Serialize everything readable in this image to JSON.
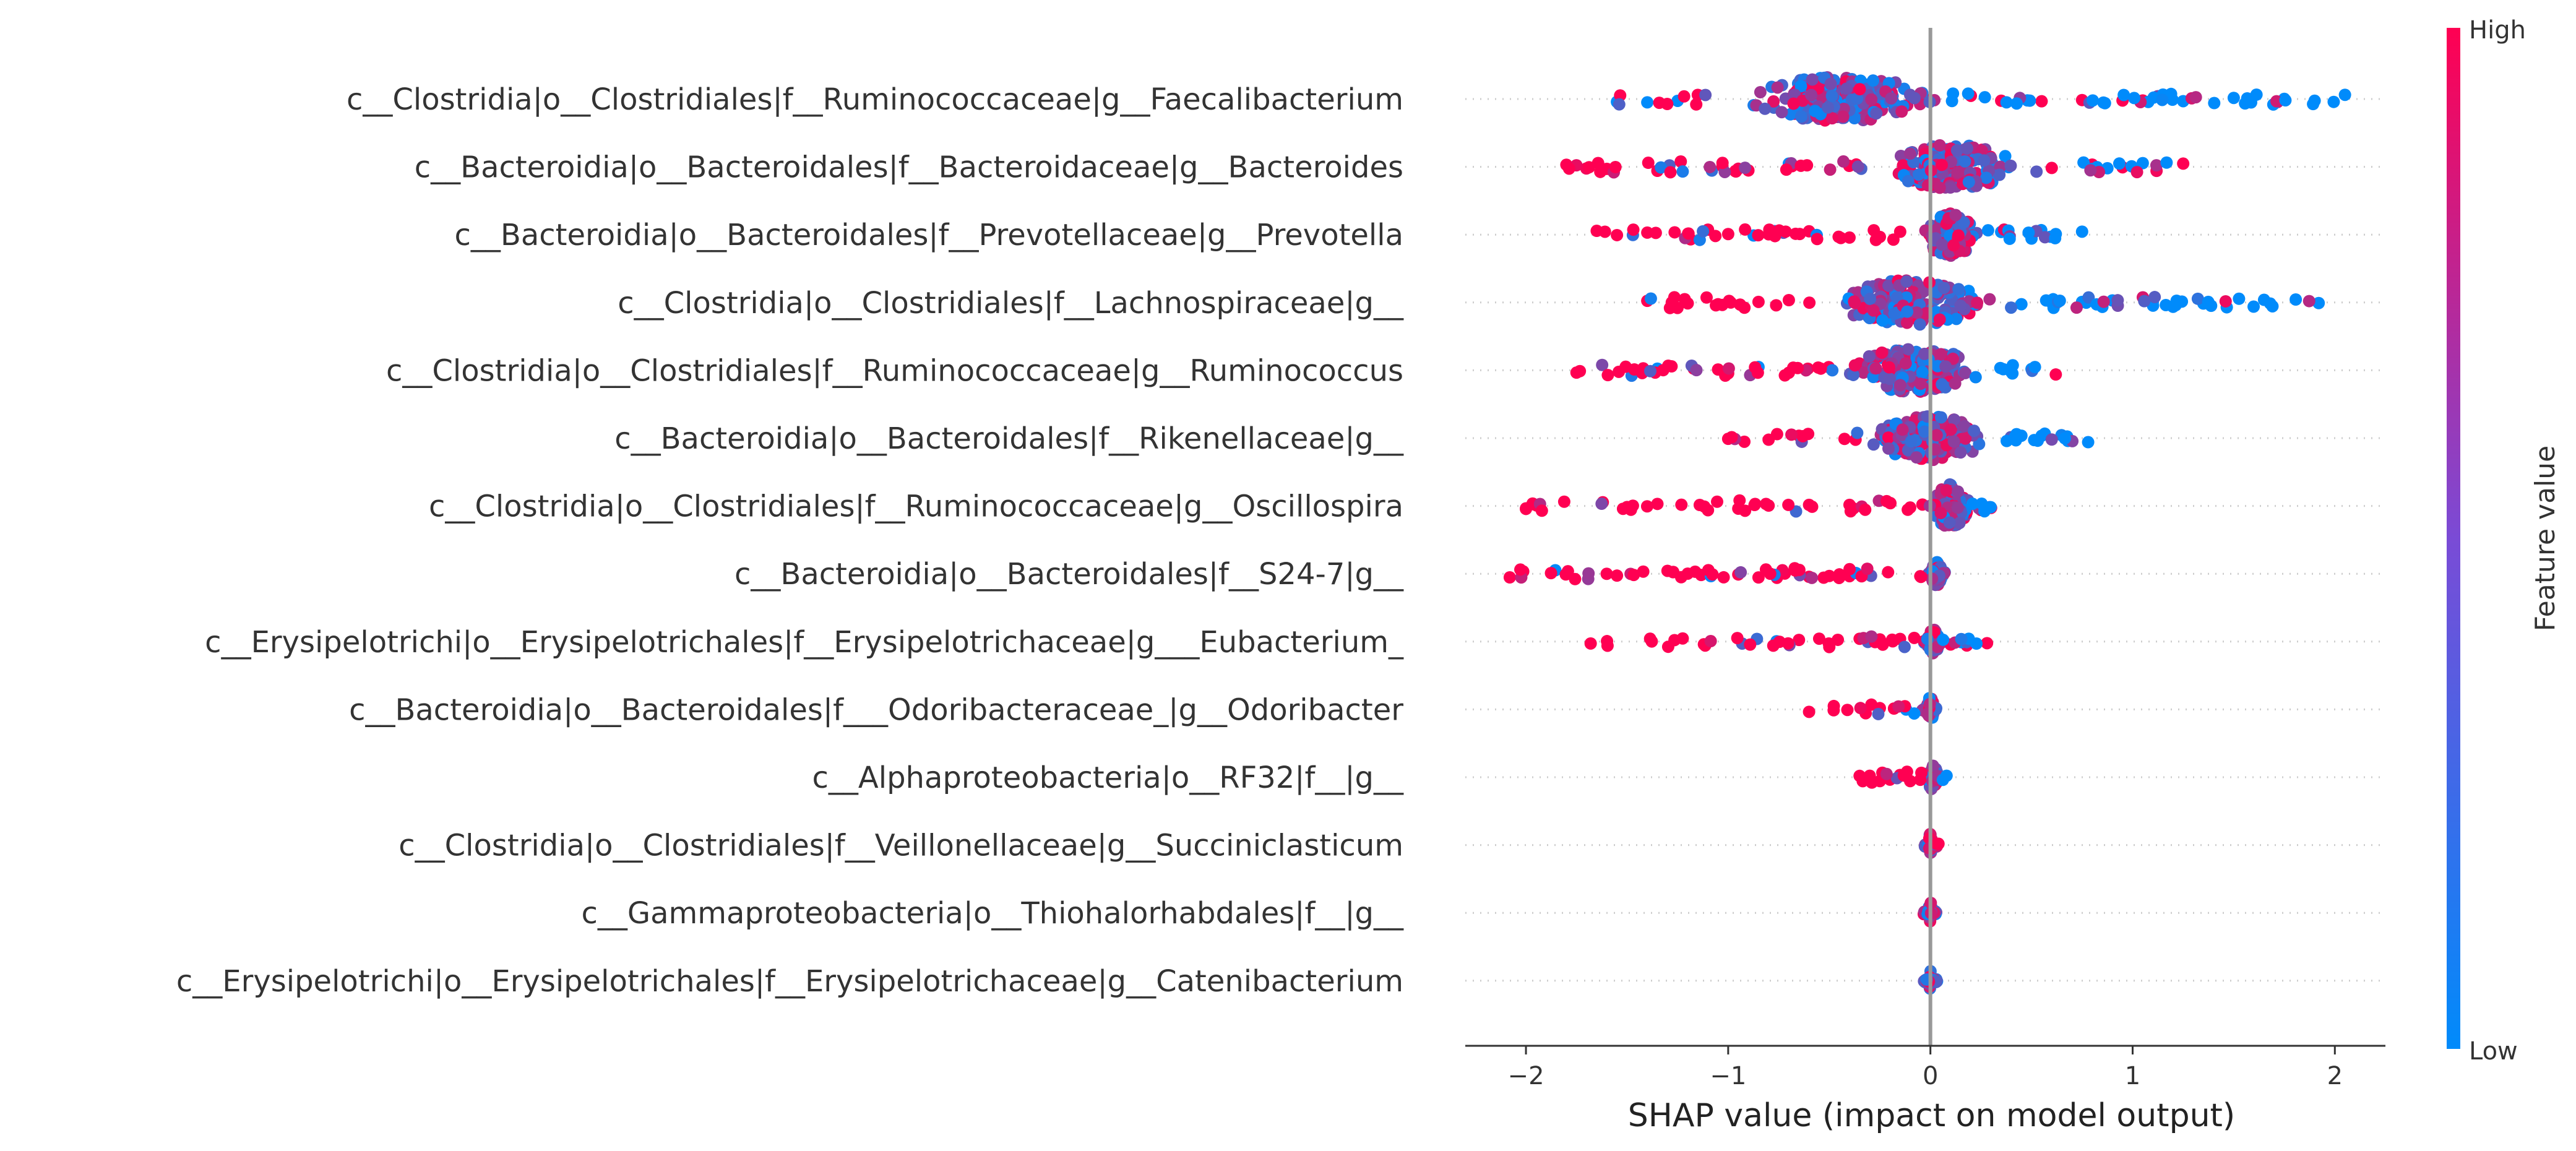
{
  "chart_data": {
    "type": "scatter",
    "subtype": "shap-beeswarm",
    "title": "",
    "xlabel": "SHAP value (impact on model output)",
    "xlim": [
      -2.3,
      2.25
    ],
    "xticks": [
      -2,
      -1,
      0,
      1,
      2
    ],
    "xtick_labels": [
      "−2",
      "−1",
      "0",
      "1",
      "2"
    ],
    "grid": false,
    "colorbar": {
      "title": "Feature value",
      "high_label": "High",
      "low_label": "Low",
      "low_color": "#008bfb",
      "high_color": "#ff0052"
    },
    "features": [
      {
        "name": "c__Clostridia|o__Clostridiales|f__Ruminococcaceae|g__Faecalibacterium",
        "min": -1.55,
        "max": 2.05,
        "core": [
          -1.0,
          0.1
        ],
        "spread": 0.1,
        "n": 230,
        "points": [
          [
            -1.55,
            "low"
          ],
          [
            -1.4,
            "low"
          ],
          [
            -1.25,
            "low"
          ],
          [
            1.25,
            "low"
          ],
          [
            1.5,
            "low"
          ],
          [
            1.75,
            "low"
          ],
          [
            1.9,
            "low"
          ],
          [
            2.05,
            "low"
          ],
          [
            0.2,
            "high"
          ],
          [
            0.35,
            "high"
          ],
          [
            0.55,
            "high"
          ],
          [
            0.75,
            "high"
          ],
          [
            0.95,
            "high"
          ],
          [
            1.05,
            "high"
          ]
        ]
      },
      {
        "name": "c__Bacteroidia|o__Bacteroidales|f__Bacteroidaceae|g__Bacteroides",
        "min": -1.8,
        "max": 1.25,
        "core": [
          -0.3,
          0.5
        ],
        "spread": 0.1,
        "n": 170,
        "points": [
          [
            -1.8,
            "high"
          ],
          [
            -1.6,
            "high"
          ],
          [
            -1.35,
            "high"
          ],
          [
            -0.9,
            "high"
          ],
          [
            -0.7,
            "low"
          ],
          [
            0.6,
            "high"
          ],
          [
            0.8,
            "high"
          ],
          [
            0.95,
            "high"
          ],
          [
            1.05,
            "low"
          ],
          [
            1.25,
            "high"
          ]
        ]
      },
      {
        "name": "c__Bacteroidia|o__Bacteroidales|f__Prevotellaceae|g__Prevotella",
        "min": -1.65,
        "max": 0.75,
        "core": [
          -0.05,
          0.25
        ],
        "spread": 0.1,
        "n": 150,
        "points": [
          [
            -1.65,
            "high"
          ],
          [
            -1.55,
            "high"
          ],
          [
            -1.4,
            "high"
          ],
          [
            -1.2,
            "high"
          ],
          [
            -1.0,
            "high"
          ],
          [
            -0.8,
            "high"
          ],
          [
            -0.6,
            "high"
          ],
          [
            -0.4,
            "high"
          ],
          [
            -0.25,
            "high"
          ],
          [
            0.35,
            "low"
          ],
          [
            0.5,
            "low"
          ],
          [
            0.62,
            "low"
          ],
          [
            0.75,
            "low"
          ]
        ]
      },
      {
        "name": "c__Clostridia|o__Clostridiales|f__Lachnospiraceae|g__",
        "min": -1.4,
        "max": 1.92,
        "core": [
          -0.55,
          0.35
        ],
        "spread": 0.1,
        "n": 190,
        "points": [
          [
            -1.4,
            "high"
          ],
          [
            -1.2,
            "high"
          ],
          [
            -1.05,
            "high"
          ],
          [
            -0.85,
            "high"
          ],
          [
            -0.7,
            "high"
          ],
          [
            0.45,
            "low"
          ],
          [
            0.6,
            "low"
          ],
          [
            0.75,
            "low"
          ],
          [
            0.9,
            "low"
          ],
          [
            1.1,
            "low"
          ],
          [
            1.2,
            "low"
          ],
          [
            1.35,
            "low"
          ],
          [
            1.65,
            "low"
          ],
          [
            1.92,
            "low"
          ]
        ]
      },
      {
        "name": "c__Clostridia|o__Clostridiales|f__Ruminococcaceae|g__Ruminococcus",
        "min": -1.75,
        "max": 0.62,
        "core": [
          -0.45,
          0.3
        ],
        "spread": 0.1,
        "n": 170,
        "points": [
          [
            -1.75,
            "high"
          ],
          [
            -1.42,
            "high"
          ],
          [
            -1.35,
            "low"
          ],
          [
            -1.28,
            "high"
          ],
          [
            -1.05,
            "high"
          ],
          [
            -0.85,
            "low"
          ],
          [
            -0.7,
            "high"
          ],
          [
            0.4,
            "low"
          ],
          [
            0.5,
            "low"
          ],
          [
            0.62,
            "high"
          ]
        ]
      },
      {
        "name": "c__Bacteroidia|o__Bacteroidales|f__Rikenellaceae|g__",
        "min": -1.0,
        "max": 0.78,
        "core": [
          -0.35,
          0.35
        ],
        "spread": 0.1,
        "n": 160,
        "points": [
          [
            -1.0,
            "high"
          ],
          [
            -0.92,
            "high"
          ],
          [
            -0.8,
            "high"
          ],
          [
            -0.65,
            "high"
          ],
          [
            0.45,
            "low"
          ],
          [
            0.55,
            "low"
          ],
          [
            0.68,
            "low"
          ],
          [
            0.78,
            "low"
          ]
        ]
      },
      {
        "name": "c__Clostridia|o__Clostridiales|f__Ruminococcaceae|g__Oscillospira",
        "min": -2.0,
        "max": 0.3,
        "core": [
          0.0,
          0.2
        ],
        "spread": 0.1,
        "n": 140,
        "points": [
          [
            -2.0,
            "high"
          ],
          [
            -1.62,
            "high"
          ],
          [
            -1.52,
            "high"
          ],
          [
            -1.35,
            "high"
          ],
          [
            -1.1,
            "high"
          ],
          [
            -0.95,
            "high"
          ],
          [
            -0.8,
            "high"
          ],
          [
            -0.6,
            "high"
          ],
          [
            -0.4,
            "high"
          ],
          [
            -0.2,
            "high"
          ],
          [
            -0.1,
            "high"
          ],
          [
            0.25,
            "high"
          ],
          [
            0.3,
            "high"
          ]
        ]
      },
      {
        "name": "c__Bacteroidia|o__Bacteroidales|f__S24-7|g__",
        "min": -2.08,
        "max": 0.05,
        "core": [
          0.0,
          0.06
        ],
        "spread": 0.1,
        "n": 110,
        "points": [
          [
            -2.08,
            "high"
          ],
          [
            -1.55,
            "high"
          ],
          [
            -1.42,
            "high"
          ],
          [
            -1.3,
            "high"
          ],
          [
            -1.2,
            "high"
          ],
          [
            -1.1,
            "high"
          ],
          [
            -0.95,
            "high"
          ],
          [
            -0.85,
            "high"
          ],
          [
            -0.72,
            "high"
          ],
          [
            -0.6,
            "high"
          ],
          [
            -0.5,
            "high"
          ],
          [
            -0.45,
            "high"
          ],
          [
            -0.05,
            "high"
          ]
        ]
      },
      {
        "name": "c__Erysipelotrichi|o__Erysipelotrichales|f__Erysipelotrichaceae|g___Eubacterium_",
        "min": -1.68,
        "max": 0.28,
        "core": [
          -0.02,
          0.05
        ],
        "spread": 0.1,
        "n": 90,
        "points": [
          [
            -1.68,
            "high"
          ],
          [
            -1.12,
            "high"
          ],
          [
            -0.65,
            "high"
          ],
          [
            -0.55,
            "high"
          ],
          [
            -0.35,
            "high"
          ],
          [
            -0.25,
            "high"
          ],
          [
            -0.15,
            "high"
          ],
          [
            -0.08,
            "high"
          ],
          [
            0.1,
            "high"
          ],
          [
            0.18,
            "high"
          ],
          [
            0.28,
            "high"
          ]
        ]
      },
      {
        "name": "c__Bacteroidia|o__Bacteroidales|f___Odoribacteraceae_|g__Odoribacter",
        "min": -0.6,
        "max": 0.02,
        "core": [
          -0.02,
          0.02
        ],
        "spread": 0.1,
        "n": 70,
        "points": [
          [
            -0.6,
            "high"
          ],
          [
            -0.32,
            "high"
          ],
          [
            -0.25,
            "high"
          ],
          [
            -0.18,
            "high"
          ],
          [
            -0.12,
            "low"
          ],
          [
            -0.08,
            "low"
          ]
        ]
      },
      {
        "name": "c__Alphaproteobacteria|o__RF32|f__|g__",
        "min": -0.35,
        "max": 0.08,
        "core": [
          -0.02,
          0.04
        ],
        "spread": 0.1,
        "n": 65,
        "points": [
          [
            -0.35,
            "high"
          ],
          [
            -0.3,
            "high"
          ],
          [
            -0.25,
            "high"
          ],
          [
            -0.2,
            "high"
          ],
          [
            -0.15,
            "high"
          ],
          [
            -0.1,
            "high"
          ],
          [
            -0.05,
            "high"
          ],
          [
            0.08,
            "low"
          ]
        ]
      },
      {
        "name": "c__Clostridia|o__Clostridiales|f__Veillonellaceae|g__Succiniclasticum",
        "min": -0.01,
        "max": 0.04,
        "core": [
          -0.01,
          0.01
        ],
        "spread": 0.1,
        "n": 60,
        "points": [
          [
            0.03,
            "high"
          ],
          [
            0.04,
            "high"
          ]
        ]
      },
      {
        "name": "c__Gammaproteobacteria|o__Thiohalorhabdales|f__|g__",
        "min": -0.01,
        "max": 0.01,
        "core": [
          -0.01,
          0.01
        ],
        "spread": 0.1,
        "n": 60,
        "points": []
      },
      {
        "name": "c__Erysipelotrichi|o__Erysipelotrichales|f__Erysipelotrichaceae|g__Catenibacterium",
        "min": -0.01,
        "max": 0.01,
        "core": [
          -0.01,
          0.01
        ],
        "spread": 0.1,
        "n": 60,
        "points": []
      }
    ]
  }
}
